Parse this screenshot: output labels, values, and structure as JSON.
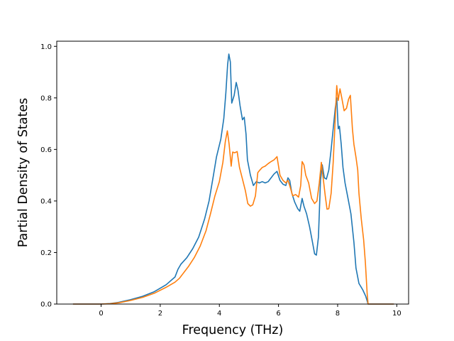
{
  "chart_data": {
    "type": "line",
    "title": "",
    "xlabel": "Frequency (THz)",
    "ylabel": "Partial Density of States",
    "xlim": [
      -1.5,
      10.4
    ],
    "ylim": [
      0.0,
      1.02
    ],
    "xticks": [
      0,
      2,
      4,
      6,
      8,
      10
    ],
    "yticks": [
      0.0,
      0.2,
      0.4,
      0.6,
      0.8,
      1.0
    ],
    "xtick_labels": [
      "0",
      "2",
      "4",
      "6",
      "8",
      "10"
    ],
    "ytick_labels": [
      "0.0",
      "0.2",
      "0.4",
      "0.6",
      "0.8",
      "1.0"
    ],
    "grid": false,
    "legend": "none",
    "series": [
      {
        "color": "#1f77b4",
        "points": [
          [
            -0.95,
            0.0
          ],
          [
            0.0,
            0.0
          ],
          [
            0.3,
            0.002
          ],
          [
            0.6,
            0.007
          ],
          [
            1.0,
            0.017
          ],
          [
            1.4,
            0.03
          ],
          [
            1.8,
            0.048
          ],
          [
            2.2,
            0.075
          ],
          [
            2.5,
            0.105
          ],
          [
            2.6,
            0.135
          ],
          [
            2.7,
            0.155
          ],
          [
            2.9,
            0.18
          ],
          [
            3.1,
            0.215
          ],
          [
            3.3,
            0.26
          ],
          [
            3.5,
            0.33
          ],
          [
            3.65,
            0.4
          ],
          [
            3.8,
            0.5
          ],
          [
            3.9,
            0.57
          ],
          [
            4.05,
            0.64
          ],
          [
            4.15,
            0.72
          ],
          [
            4.22,
            0.82
          ],
          [
            4.28,
            0.93
          ],
          [
            4.32,
            0.97
          ],
          [
            4.37,
            0.94
          ],
          [
            4.42,
            0.78
          ],
          [
            4.5,
            0.81
          ],
          [
            4.57,
            0.86
          ],
          [
            4.63,
            0.83
          ],
          [
            4.7,
            0.77
          ],
          [
            4.78,
            0.715
          ],
          [
            4.84,
            0.725
          ],
          [
            4.9,
            0.66
          ],
          [
            4.95,
            0.56
          ],
          [
            5.05,
            0.5
          ],
          [
            5.15,
            0.46
          ],
          [
            5.25,
            0.475
          ],
          [
            5.35,
            0.47
          ],
          [
            5.45,
            0.475
          ],
          [
            5.55,
            0.47
          ],
          [
            5.65,
            0.475
          ],
          [
            5.75,
            0.49
          ],
          [
            5.85,
            0.505
          ],
          [
            5.95,
            0.515
          ],
          [
            6.05,
            0.48
          ],
          [
            6.15,
            0.465
          ],
          [
            6.25,
            0.46
          ],
          [
            6.32,
            0.49
          ],
          [
            6.38,
            0.48
          ],
          [
            6.45,
            0.43
          ],
          [
            6.55,
            0.395
          ],
          [
            6.65,
            0.37
          ],
          [
            6.72,
            0.36
          ],
          [
            6.8,
            0.41
          ],
          [
            6.86,
            0.38
          ],
          [
            6.95,
            0.35
          ],
          [
            7.05,
            0.3
          ],
          [
            7.15,
            0.24
          ],
          [
            7.22,
            0.195
          ],
          [
            7.28,
            0.19
          ],
          [
            7.35,
            0.26
          ],
          [
            7.42,
            0.48
          ],
          [
            7.48,
            0.54
          ],
          [
            7.55,
            0.49
          ],
          [
            7.62,
            0.485
          ],
          [
            7.7,
            0.52
          ],
          [
            7.78,
            0.6
          ],
          [
            7.85,
            0.68
          ],
          [
            7.92,
            0.76
          ],
          [
            7.97,
            0.8
          ],
          [
            8.02,
            0.68
          ],
          [
            8.06,
            0.69
          ],
          [
            8.12,
            0.62
          ],
          [
            8.18,
            0.53
          ],
          [
            8.25,
            0.47
          ],
          [
            8.35,
            0.41
          ],
          [
            8.45,
            0.35
          ],
          [
            8.55,
            0.24
          ],
          [
            8.62,
            0.14
          ],
          [
            8.72,
            0.08
          ],
          [
            8.85,
            0.055
          ],
          [
            8.95,
            0.03
          ],
          [
            9.03,
            0.0
          ],
          [
            9.9,
            0.0
          ]
        ]
      },
      {
        "color": "#ff7f0e",
        "points": [
          [
            -0.95,
            0.0
          ],
          [
            0.0,
            0.0
          ],
          [
            0.3,
            0.001
          ],
          [
            0.6,
            0.005
          ],
          [
            1.0,
            0.014
          ],
          [
            1.4,
            0.026
          ],
          [
            1.8,
            0.042
          ],
          [
            2.2,
            0.065
          ],
          [
            2.5,
            0.085
          ],
          [
            2.65,
            0.1
          ],
          [
            2.75,
            0.115
          ],
          [
            2.95,
            0.145
          ],
          [
            3.15,
            0.18
          ],
          [
            3.35,
            0.225
          ],
          [
            3.55,
            0.285
          ],
          [
            3.7,
            0.35
          ],
          [
            3.85,
            0.42
          ],
          [
            4.0,
            0.475
          ],
          [
            4.12,
            0.55
          ],
          [
            4.2,
            0.63
          ],
          [
            4.27,
            0.672
          ],
          [
            4.33,
            0.62
          ],
          [
            4.4,
            0.535
          ],
          [
            4.45,
            0.59
          ],
          [
            4.52,
            0.587
          ],
          [
            4.6,
            0.592
          ],
          [
            4.68,
            0.53
          ],
          [
            4.78,
            0.485
          ],
          [
            4.88,
            0.44
          ],
          [
            4.96,
            0.39
          ],
          [
            5.05,
            0.38
          ],
          [
            5.13,
            0.385
          ],
          [
            5.22,
            0.42
          ],
          [
            5.3,
            0.51
          ],
          [
            5.37,
            0.52
          ],
          [
            5.45,
            0.53
          ],
          [
            5.55,
            0.535
          ],
          [
            5.65,
            0.545
          ],
          [
            5.75,
            0.553
          ],
          [
            5.85,
            0.56
          ],
          [
            5.95,
            0.572
          ],
          [
            6.05,
            0.5
          ],
          [
            6.15,
            0.48
          ],
          [
            6.25,
            0.47
          ],
          [
            6.32,
            0.48
          ],
          [
            6.38,
            0.46
          ],
          [
            6.48,
            0.42
          ],
          [
            6.58,
            0.425
          ],
          [
            6.68,
            0.415
          ],
          [
            6.75,
            0.46
          ],
          [
            6.8,
            0.553
          ],
          [
            6.86,
            0.54
          ],
          [
            6.92,
            0.5
          ],
          [
            7.02,
            0.47
          ],
          [
            7.12,
            0.41
          ],
          [
            7.22,
            0.39
          ],
          [
            7.3,
            0.4
          ],
          [
            7.38,
            0.47
          ],
          [
            7.45,
            0.55
          ],
          [
            7.5,
            0.5
          ],
          [
            7.58,
            0.42
          ],
          [
            7.64,
            0.368
          ],
          [
            7.7,
            0.37
          ],
          [
            7.78,
            0.43
          ],
          [
            7.85,
            0.55
          ],
          [
            7.92,
            0.72
          ],
          [
            7.97,
            0.848
          ],
          [
            8.02,
            0.79
          ],
          [
            8.08,
            0.835
          ],
          [
            8.14,
            0.8
          ],
          [
            8.22,
            0.75
          ],
          [
            8.3,
            0.76
          ],
          [
            8.37,
            0.795
          ],
          [
            8.43,
            0.81
          ],
          [
            8.5,
            0.68
          ],
          [
            8.55,
            0.62
          ],
          [
            8.62,
            0.57
          ],
          [
            8.68,
            0.52
          ],
          [
            8.72,
            0.43
          ],
          [
            8.8,
            0.33
          ],
          [
            8.88,
            0.25
          ],
          [
            8.94,
            0.16
          ],
          [
            9.0,
            0.04
          ],
          [
            9.03,
            0.0
          ],
          [
            9.9,
            0.0
          ]
        ]
      }
    ]
  }
}
